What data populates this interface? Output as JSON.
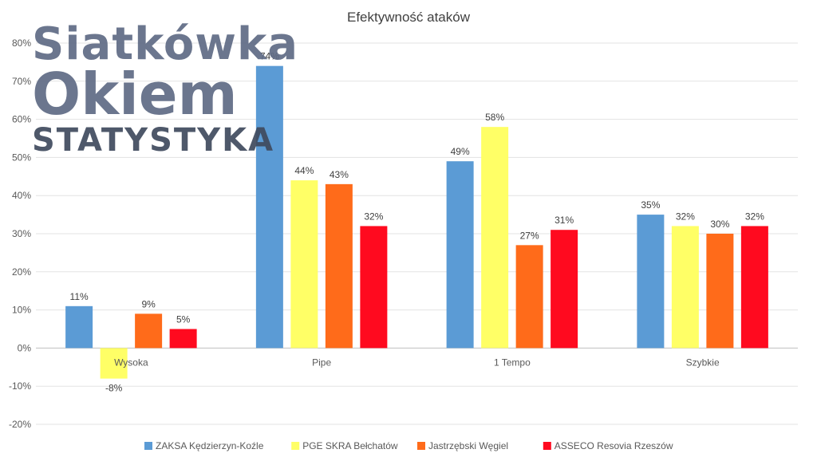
{
  "logo": {
    "line1": "Siatkówka",
    "line2": "Okiem",
    "line3": "STATYSTYKA"
  },
  "chart_data": {
    "type": "bar",
    "title": "Efektywność ataków",
    "xlabel": "",
    "ylabel": "",
    "categories": [
      "Wysoka",
      "Pipe",
      "1 Tempo",
      "Szybkie"
    ],
    "ylim": [
      -20,
      80
    ],
    "ytick_step": 10,
    "y_unit": "%",
    "grid": true,
    "legend_position": "bottom",
    "series": [
      {
        "name": "ZAKSA Kędzierzyn-Koźle",
        "color": "#5b9bd5",
        "values": [
          11,
          74,
          49,
          35
        ]
      },
      {
        "name": "PGE SKRA Bełchatów",
        "color": "#ffff66",
        "values": [
          -8,
          44,
          58,
          32
        ]
      },
      {
        "name": "Jastrzębski Węgiel",
        "color": "#ff6b1a",
        "values": [
          9,
          43,
          27,
          30
        ]
      },
      {
        "name": "ASSECO Resovia Rzeszów",
        "color": "#ff0a1f",
        "values": [
          5,
          32,
          31,
          32
        ]
      }
    ]
  }
}
